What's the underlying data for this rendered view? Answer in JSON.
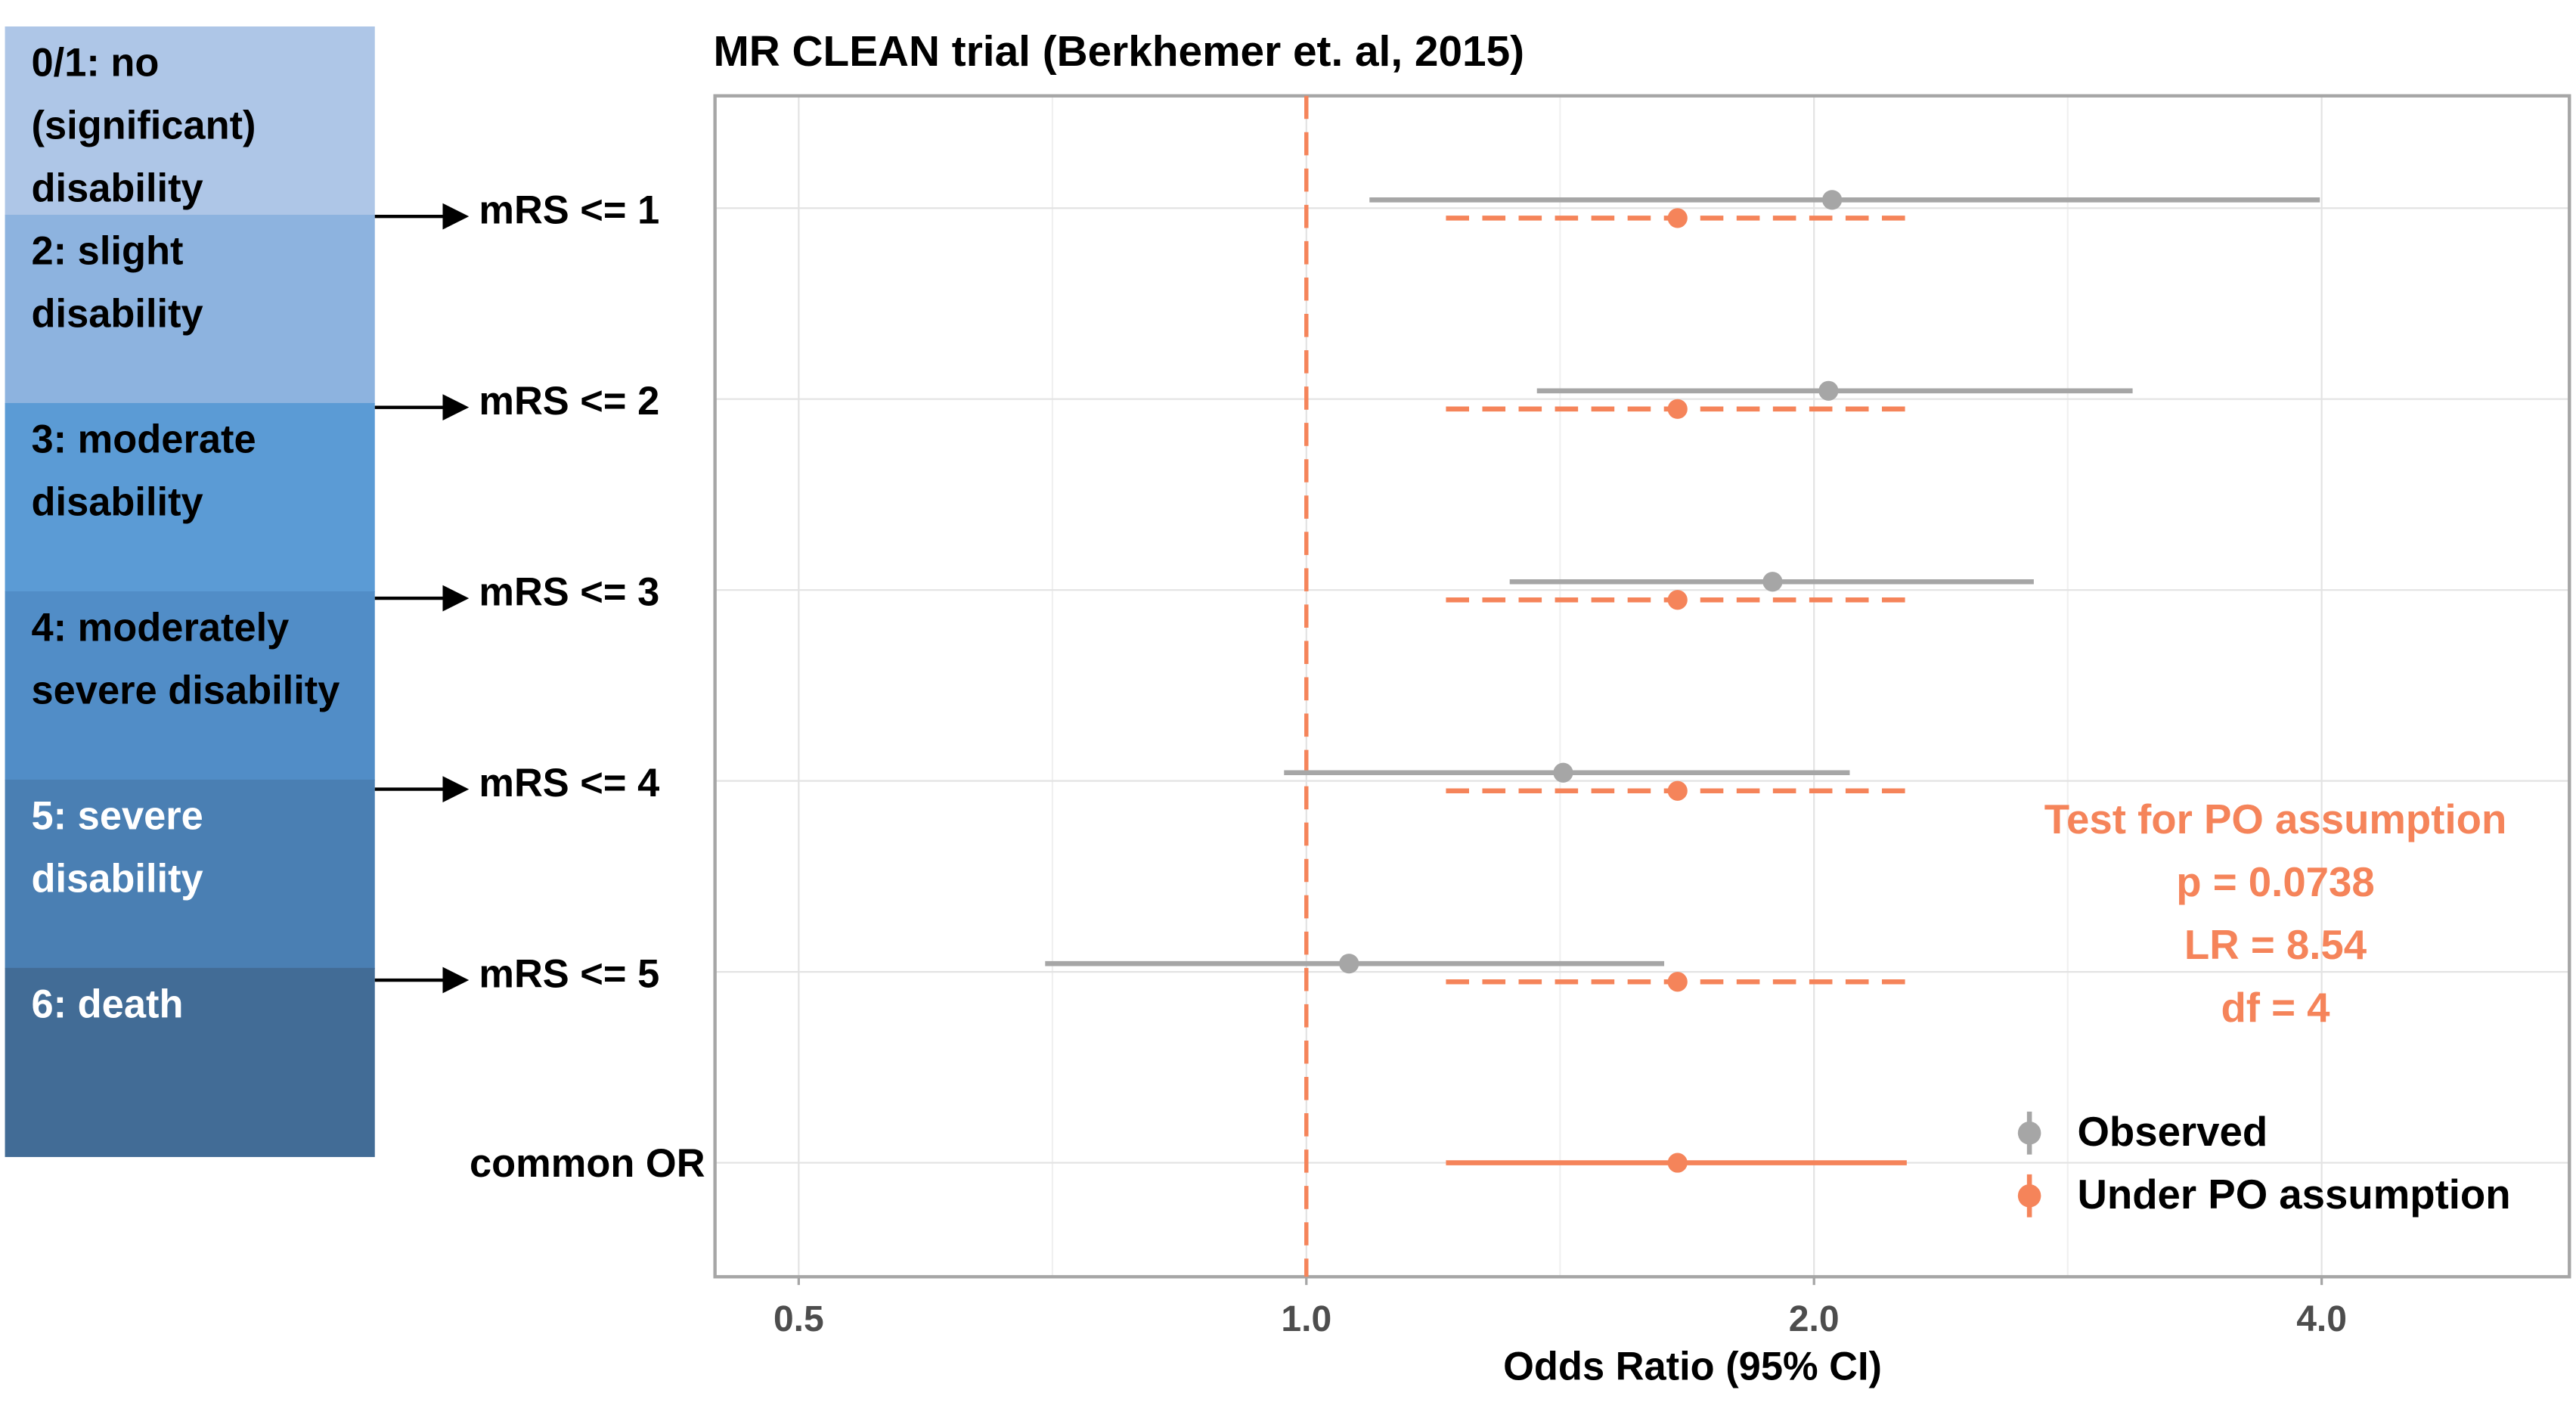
{
  "chart_data": {
    "type": "forest",
    "title": "MR CLEAN trial (Berkhemer et. al, 2015)",
    "xlabel": "Odds Ratio (95% CI)",
    "xscale": "log",
    "xlim": [
      0.446,
      5.61
    ],
    "xticks": [
      0.5,
      {
        "value": 1,
        "label": "1.0"
      },
      {
        "value": 2,
        "label": "2.0"
      },
      {
        "value": 4,
        "label": "4.0"
      }
    ],
    "xminor": [
      0.707,
      1.414,
      2.828
    ],
    "grid": true,
    "ref_line": 1,
    "ref_color": "#f5845a",
    "categories": [
      "mRS <= 1",
      "mRS <= 2",
      "mRS <= 3",
      "mRS <= 4",
      "mRS <= 5",
      "common OR"
    ],
    "series": [
      {
        "name": "Observed",
        "color": "#a6a6a6",
        "values": [
          2.05,
          2.04,
          1.89,
          1.42,
          1.06,
          null
        ],
        "lower": [
          1.09,
          1.37,
          1.32,
          0.97,
          0.7,
          null
        ],
        "upper": [
          3.99,
          3.09,
          2.7,
          2.1,
          1.63,
          null
        ],
        "dashed": [
          false,
          false,
          false,
          false,
          false,
          false
        ]
      },
      {
        "name": "Under PO assumption",
        "color": "#f5845a",
        "values": [
          1.66,
          1.66,
          1.66,
          1.66,
          1.66,
          1.66
        ],
        "lower": [
          1.21,
          1.21,
          1.21,
          1.21,
          1.21,
          1.21
        ],
        "upper": [
          2.27,
          2.27,
          2.27,
          2.27,
          2.27,
          2.27
        ],
        "dashed": [
          true,
          true,
          true,
          true,
          true,
          false
        ]
      }
    ],
    "annotation": [
      "Test for PO assumption",
      "p = 0.0738",
      "LR = 8.54",
      "df = 4"
    ],
    "annotation_color": "#f5845a",
    "legend_position": "bottom-right",
    "scale_boxes": [
      {
        "label": "0/1: no (significant) disability",
        "color": "#aec6e7",
        "text_color": "#000000"
      },
      {
        "label": "2: slight disability",
        "color": "#8db3df",
        "text_color": "#000000"
      },
      {
        "label": "3: moderate disability",
        "color": "#5b9bd5",
        "text_color": "#000000"
      },
      {
        "label": "4: moderately severe disability",
        "color": "#518dc7",
        "text_color": "#000000"
      },
      {
        "label": "5: severe disability",
        "color": "#4a7fb3",
        "text_color": "#ffffff"
      },
      {
        "label": "6: death",
        "color": "#426c96",
        "text_color": "#ffffff"
      }
    ]
  }
}
